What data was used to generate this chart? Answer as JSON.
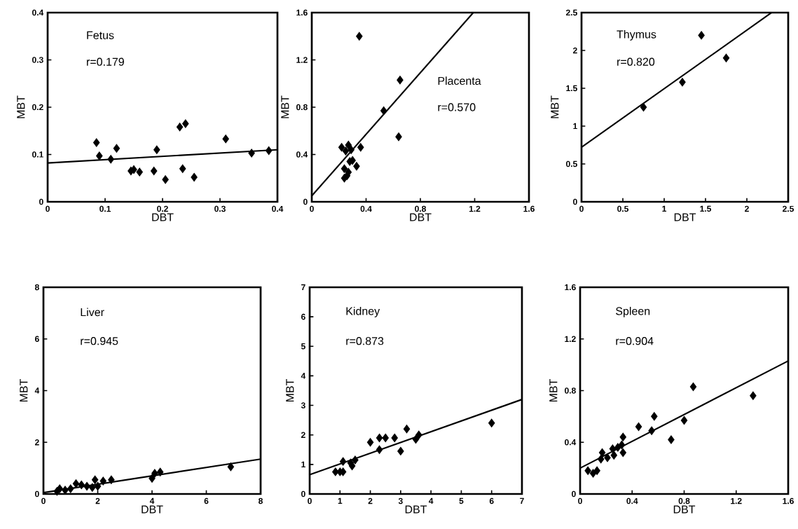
{
  "chart_data": [
    {
      "type": "scatter",
      "xlabel": "DBT",
      "ylabel": "MBT",
      "annotations": [
        "Fetus",
        "r=0.179"
      ],
      "xlim": [
        0,
        0.4
      ],
      "ylim": [
        0,
        0.4
      ],
      "xticks": [
        0,
        0.1,
        0.2,
        0.3,
        0.4
      ],
      "yticks": [
        0,
        0.1,
        0.2,
        0.3,
        0.4
      ],
      "marker": "diamond",
      "series": [
        {
          "color": "#000000",
          "x": [
            0.085,
            0.09,
            0.11,
            0.12,
            0.145,
            0.15,
            0.16,
            0.185,
            0.19,
            0.205,
            0.23,
            0.235,
            0.24,
            0.255,
            0.31,
            0.355,
            0.385
          ],
          "values": [
            0.125,
            0.097,
            0.09,
            0.113,
            0.065,
            0.068,
            0.063,
            0.065,
            0.11,
            0.047,
            0.158,
            0.07,
            0.165,
            0.052,
            0.133,
            0.103,
            0.108
          ]
        },
        {
          "type": "line",
          "color": "#000000",
          "marker": "none",
          "x": [
            0,
            0.4
          ],
          "values": [
            0.082,
            0.11
          ]
        }
      ]
    },
    {
      "type": "scatter",
      "xlabel": "DBT",
      "ylabel": "MBT",
      "annotations": [
        "Placenta",
        "r=0.570"
      ],
      "xlim": [
        0,
        1.6
      ],
      "ylim": [
        0,
        1.6
      ],
      "xticks": [
        0,
        0.4,
        0.8,
        1.2,
        1.6
      ],
      "yticks": [
        0,
        0.4,
        0.8,
        1.2,
        1.6
      ],
      "marker": "diamond",
      "series": [
        {
          "color": "#000000",
          "x": [
            0.35,
            0.65,
            0.53,
            0.64,
            0.22,
            0.25,
            0.27,
            0.29,
            0.36,
            0.28,
            0.3,
            0.33,
            0.24,
            0.27,
            0.24,
            0.26
          ],
          "values": [
            1.4,
            1.03,
            0.77,
            0.55,
            0.46,
            0.43,
            0.48,
            0.44,
            0.46,
            0.34,
            0.35,
            0.3,
            0.28,
            0.25,
            0.2,
            0.22
          ]
        },
        {
          "type": "line",
          "color": "#000000",
          "marker": "none",
          "x": [
            0,
            1.19
          ],
          "values": [
            0.05,
            1.6
          ]
        }
      ]
    },
    {
      "type": "scatter",
      "xlabel": "DBT",
      "ylabel": "MBT",
      "annotations": [
        "Thymus",
        "r=0.820"
      ],
      "xlim": [
        0,
        2.5
      ],
      "ylim": [
        0,
        2.5
      ],
      "xticks": [
        0,
        0.5,
        1,
        1.5,
        2,
        2.5
      ],
      "yticks": [
        0,
        0.5,
        1,
        1.5,
        2,
        2.5
      ],
      "marker": "diamond",
      "series": [
        {
          "color": "#000000",
          "x": [
            0.75,
            1.22,
            1.45,
            1.75
          ],
          "values": [
            1.25,
            1.58,
            2.2,
            1.9
          ]
        },
        {
          "type": "line",
          "color": "#000000",
          "marker": "none",
          "x": [
            0,
            2.3
          ],
          "values": [
            0.72,
            2.5
          ]
        }
      ]
    },
    {
      "type": "scatter",
      "xlabel": "DBT",
      "ylabel": "MBT",
      "annotations": [
        "Liver",
        "r=0.945"
      ],
      "xlim": [
        0,
        8
      ],
      "ylim": [
        0,
        8
      ],
      "xticks": [
        0,
        2,
        4,
        6,
        8
      ],
      "yticks": [
        0,
        2,
        4,
        6,
        8
      ],
      "marker": "diamond",
      "series": [
        {
          "color": "#000000",
          "x": [
            0.5,
            0.6,
            0.8,
            1.0,
            1.2,
            1.4,
            1.6,
            1.8,
            1.9,
            2.0,
            2.2,
            2.5,
            4.0,
            4.1,
            4.3,
            6.9
          ],
          "values": [
            0.1,
            0.2,
            0.15,
            0.2,
            0.4,
            0.35,
            0.3,
            0.25,
            0.55,
            0.3,
            0.5,
            0.55,
            0.6,
            0.8,
            0.85,
            1.05
          ]
        },
        {
          "type": "line",
          "color": "#000000",
          "marker": "none",
          "x": [
            0,
            8
          ],
          "values": [
            0.05,
            1.35
          ]
        }
      ]
    },
    {
      "type": "scatter",
      "xlabel": "DBT",
      "ylabel": "MBT",
      "annotations": [
        "Kidney",
        "r=0.873"
      ],
      "xlim": [
        0,
        7
      ],
      "ylim": [
        0,
        7
      ],
      "xticks": [
        0,
        1,
        2,
        3,
        4,
        5,
        6,
        7
      ],
      "yticks": [
        0,
        1,
        2,
        3,
        4,
        5,
        6,
        7
      ],
      "marker": "diamond",
      "series": [
        {
          "color": "#000000",
          "x": [
            0.85,
            1.0,
            1.1,
            1.1,
            1.35,
            1.4,
            1.5,
            2.0,
            2.3,
            2.3,
            2.5,
            2.8,
            3.0,
            3.2,
            3.5,
            3.6,
            6.0
          ],
          "values": [
            0.75,
            0.75,
            0.75,
            1.1,
            1.05,
            0.95,
            1.15,
            1.75,
            1.9,
            1.5,
            1.9,
            1.9,
            1.45,
            2.2,
            1.85,
            2.0,
            2.4
          ]
        },
        {
          "type": "line",
          "color": "#000000",
          "marker": "none",
          "x": [
            0,
            7
          ],
          "values": [
            0.65,
            3.2
          ]
        }
      ]
    },
    {
      "type": "scatter",
      "xlabel": "DBT",
      "ylabel": "MBT",
      "annotations": [
        "Spleen",
        "r=0.904"
      ],
      "xlim": [
        0,
        1.6
      ],
      "ylim": [
        0,
        1.6
      ],
      "xticks": [
        0,
        0.4,
        0.8,
        1.2,
        1.6
      ],
      "yticks": [
        0,
        0.4,
        0.8,
        1.2,
        1.6
      ],
      "marker": "diamond",
      "series": [
        {
          "color": "#000000",
          "x": [
            0.06,
            0.1,
            0.13,
            0.16,
            0.17,
            0.21,
            0.26,
            0.25,
            0.29,
            0.32,
            0.33,
            0.33,
            0.45,
            0.55,
            0.57,
            0.7,
            0.8,
            0.87,
            1.33
          ],
          "values": [
            0.18,
            0.16,
            0.18,
            0.27,
            0.32,
            0.28,
            0.3,
            0.35,
            0.36,
            0.38,
            0.44,
            0.32,
            0.52,
            0.49,
            0.6,
            0.42,
            0.57,
            0.83,
            0.76
          ]
        },
        {
          "type": "line",
          "color": "#000000",
          "marker": "none",
          "x": [
            0,
            1.6
          ],
          "values": [
            0.2,
            1.03
          ]
        }
      ]
    }
  ]
}
